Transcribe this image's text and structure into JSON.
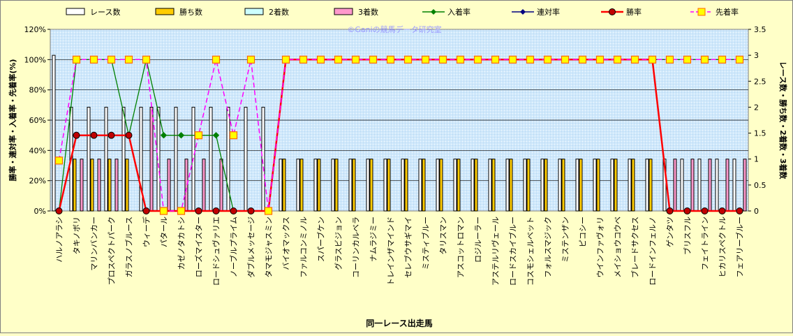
{
  "chart_data": {
    "type": "bar",
    "title": "",
    "watermark": "©Ganiの競馬データ研究室",
    "xlabel": "同一レース出走馬",
    "ylabel_left": "勝率・連対率・入着率・先着率(%)",
    "ylabel_right": "レース数・勝ち数・2着数・3着数",
    "ylim_left": [
      0,
      120
    ],
    "ylim_right": [
      0,
      3.5
    ],
    "yticks_left": [
      "0%",
      "20%",
      "40%",
      "60%",
      "80%",
      "100%",
      "120%"
    ],
    "yticks_right": [
      "0",
      "0.5",
      "1",
      "1.5",
      "2",
      "2.5",
      "3",
      "3.5"
    ],
    "legend_position": "top",
    "grid": true,
    "categories": [
      "ハルノアラシ",
      "タキノボリ",
      "マリンバンカー",
      "プロスペクトパーク",
      "ガラスノブルース",
      "ウィーデ",
      "パタール",
      "カゼノタカトシ",
      "ローズマイスター",
      "ロードシュヴァリエ",
      "ノーブルプライム",
      "ダブルメッセージ",
      "タマモジャスミン",
      "バイオマックス",
      "ファルコンミノル",
      "スパーブケン",
      "グラスビジョン",
      "コーリンカルベラ",
      "ナムラジミー",
      "トレインザマインド",
      "セレブウサギマイ",
      "ミスティブルー",
      "タリスマン",
      "アスコットロマン",
      "ロジルーラー",
      "アステルリヴェール",
      "ロードスカイブルー",
      "コスモシェルベット",
      "フォルスマジック",
      "ミステンザン",
      "ピコシー",
      "ウインファヴォリ",
      "メイショウコウベ",
      "ブレードサクセス",
      "ロードインフェルノ",
      "ゲンタツ",
      "ブリスフル",
      "フェイトライン",
      "ヒカリスペクトル",
      "フェアリーブルー"
    ],
    "series": [
      {
        "name": "レース数",
        "type": "bar",
        "axis": "right",
        "color": "#ffffff",
        "values": [
          3,
          2,
          2,
          2,
          2,
          2,
          2,
          2,
          2,
          2,
          2,
          2,
          2,
          1,
          1,
          1,
          1,
          1,
          1,
          1,
          1,
          1,
          1,
          1,
          1,
          1,
          1,
          1,
          1,
          1,
          1,
          1,
          1,
          1,
          1,
          1,
          1,
          1,
          1,
          1
        ]
      },
      {
        "name": "勝ち数",
        "type": "bar",
        "axis": "right",
        "color": "#ffcc00",
        "values": [
          0,
          1,
          1,
          1,
          1,
          0,
          0,
          0,
          0,
          0,
          0,
          0,
          0,
          1,
          1,
          1,
          1,
          1,
          1,
          1,
          1,
          1,
          1,
          1,
          1,
          1,
          1,
          1,
          1,
          1,
          1,
          1,
          1,
          1,
          1,
          0,
          0,
          0,
          0,
          0
        ]
      },
      {
        "name": "2着数",
        "type": "bar",
        "axis": "right",
        "color": "#ccffff",
        "values": [
          0,
          0,
          0,
          0,
          0,
          0,
          0,
          0,
          0,
          0,
          0,
          0,
          0,
          0,
          0,
          0,
          0,
          0,
          0,
          0,
          0,
          0,
          0,
          0,
          0,
          0,
          0,
          0,
          0,
          0,
          0,
          0,
          0,
          0,
          0,
          0,
          0,
          0,
          0,
          0
        ]
      },
      {
        "name": "3着数",
        "type": "bar",
        "axis": "right",
        "color": "#ff99cc",
        "values": [
          0,
          1,
          1,
          1,
          0,
          2,
          1,
          1,
          1,
          1,
          0,
          0,
          0,
          0,
          0,
          0,
          0,
          0,
          0,
          0,
          0,
          0,
          0,
          0,
          0,
          0,
          0,
          0,
          0,
          0,
          0,
          0,
          0,
          0,
          0,
          1,
          1,
          1,
          1,
          1
        ]
      },
      {
        "name": "入着率",
        "type": "line",
        "axis": "left",
        "color": "#008000",
        "marker": "diamond",
        "values": [
          0,
          100,
          100,
          100,
          50,
          100,
          50,
          50,
          50,
          50,
          0,
          0,
          0,
          100,
          100,
          100,
          100,
          100,
          100,
          100,
          100,
          100,
          100,
          100,
          100,
          100,
          100,
          100,
          100,
          100,
          100,
          100,
          100,
          100,
          100,
          100,
          100,
          100,
          100,
          100
        ]
      },
      {
        "name": "連対率",
        "type": "line",
        "axis": "left",
        "color": "#000080",
        "marker": "diamond",
        "values": [
          0,
          50,
          50,
          50,
          50,
          0,
          0,
          0,
          0,
          0,
          0,
          0,
          0,
          100,
          100,
          100,
          100,
          100,
          100,
          100,
          100,
          100,
          100,
          100,
          100,
          100,
          100,
          100,
          100,
          100,
          100,
          100,
          100,
          100,
          100,
          0,
          0,
          0,
          0,
          0
        ]
      },
      {
        "name": "勝率",
        "type": "line",
        "axis": "left",
        "color": "#ff0000",
        "marker": "circle",
        "values": [
          0,
          50,
          50,
          50,
          50,
          0,
          0,
          0,
          0,
          0,
          0,
          0,
          0,
          100,
          100,
          100,
          100,
          100,
          100,
          100,
          100,
          100,
          100,
          100,
          100,
          100,
          100,
          100,
          100,
          100,
          100,
          100,
          100,
          100,
          100,
          0,
          0,
          0,
          0,
          0
        ]
      },
      {
        "name": "先着率",
        "type": "line",
        "axis": "left",
        "color": "#ff00ff",
        "marker": "square",
        "dashed": true,
        "values": [
          33.3,
          100,
          100,
          100,
          100,
          100,
          0,
          0,
          50,
          100,
          50,
          100,
          0,
          100,
          100,
          100,
          100,
          100,
          100,
          100,
          100,
          100,
          100,
          100,
          100,
          100,
          100,
          100,
          100,
          100,
          100,
          100,
          100,
          100,
          100,
          100,
          100,
          100,
          100,
          100
        ]
      }
    ]
  }
}
